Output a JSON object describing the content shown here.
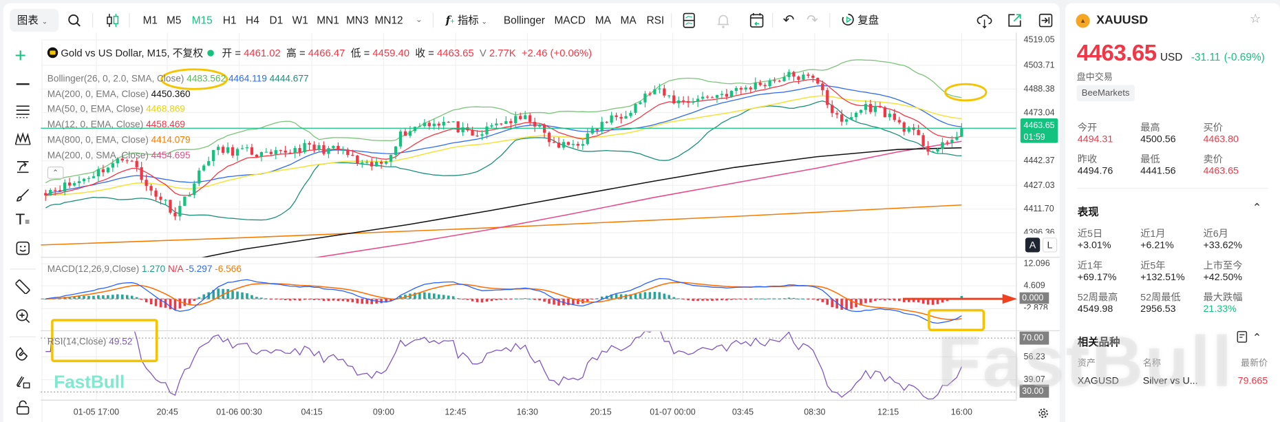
{
  "toolbar": {
    "chart_menu": "图表",
    "timeframes": [
      "M1",
      "M5",
      "M15",
      "H1",
      "H4",
      "D1",
      "W1",
      "MN1",
      "MN3",
      "MN12"
    ],
    "active_timeframe": "M15",
    "indicators_label": "指标",
    "quick_indicators": [
      "Bollinger",
      "MACD",
      "MA",
      "MA",
      "RSI"
    ],
    "replay_label": "复盘"
  },
  "legend": {
    "symbol_title": "Gold vs US Dollar, M15, 不复权",
    "open_label": "开 =",
    "open": "4461.02",
    "high_label": "高 =",
    "high": "4466.47",
    "low_label": "低 =",
    "low": "4459.40",
    "close_label": "收 =",
    "close": "4463.65",
    "volume_label": "V",
    "volume": "2.77K",
    "change": "+2.46 (+0.06%)"
  },
  "indicators": [
    {
      "name": "Bollinger(26, 0, 2.0, SMA, Close)",
      "values": [
        "4483.562",
        "4464.119",
        "4444.677"
      ]
    },
    {
      "name": "MA(200, 0, EMA, Close)",
      "values": [
        "4450.360"
      ]
    },
    {
      "name": "MA(50, 0, EMA, Close)",
      "values": [
        "4468.869"
      ]
    },
    {
      "name": "MA(12, 0, EMA, Close)",
      "values": [
        "4458.469"
      ]
    },
    {
      "name": "MA(800, 0, EMA, Close)",
      "values": [
        "4414.079"
      ]
    },
    {
      "name": "MA(200, 0, SMA, Close)",
      "values": [
        "4454.695"
      ]
    }
  ],
  "price_axis": [
    "4519.05",
    "4503.71",
    "4488.38",
    "4473.04",
    "4442.37",
    "4427.03",
    "4411.70",
    "4396.36"
  ],
  "current_price": {
    "price": "4463.65",
    "countdown": "01:59"
  },
  "scale_buttons": {
    "auto": "A",
    "log": "L"
  },
  "macd": {
    "name": "MACD(12,26,9,Close)",
    "hist": "1.270",
    "na": "N/A",
    "macd": "-5.297",
    "signal": "-6.566",
    "axis": [
      "12.096",
      "4.609",
      "0.000",
      "-2.878"
    ]
  },
  "rsi": {
    "name": "RSI(14,Close)",
    "value": "49.52",
    "axis": [
      "70.00",
      "56.23",
      "39.07",
      "30.00"
    ]
  },
  "time_axis": [
    "01-05 17:00",
    "20:45",
    "01-06 00:30",
    "04:15",
    "09:00",
    "12:45",
    "16:30",
    "20:15",
    "01-07 00:00",
    "03:45",
    "08:30",
    "12:15",
    "16:00"
  ],
  "watermark": "FastBull",
  "colors": {
    "up": "#13c27f",
    "down": "#f23645",
    "accent": "#13c27f",
    "annotation": "#f5c400"
  },
  "quote": {
    "symbol": "XAUUSD",
    "price": "4463.65",
    "currency": "USD",
    "change": "-31.11",
    "change_pct": "(-0.69%)",
    "session": "盘中交易",
    "broker": "BeeMarkets",
    "stats": [
      {
        "label": "今开",
        "value": "4494.31",
        "tone": "red"
      },
      {
        "label": "最高",
        "value": "4500.56",
        "tone": ""
      },
      {
        "label": "买价",
        "value": "4463.80",
        "tone": "red"
      },
      {
        "label": "昨收",
        "value": "4494.76",
        "tone": ""
      },
      {
        "label": "最低",
        "value": "4441.56",
        "tone": ""
      },
      {
        "label": "卖价",
        "value": "4463.65",
        "tone": "red"
      }
    ]
  },
  "performance": {
    "title": "表现",
    "items": [
      {
        "label": "近5日",
        "value": "+3.01%",
        "tone": ""
      },
      {
        "label": "近1月",
        "value": "+6.21%",
        "tone": ""
      },
      {
        "label": "近6月",
        "value": "+33.62%",
        "tone": ""
      },
      {
        "label": "近1年",
        "value": "+69.17%",
        "tone": ""
      },
      {
        "label": "近5年",
        "value": "+132.51%",
        "tone": ""
      },
      {
        "label": "上市至今",
        "value": "+42.50%",
        "tone": ""
      },
      {
        "label": "52周最高",
        "value": "4549.98",
        "tone": ""
      },
      {
        "label": "52周最低",
        "value": "2956.53",
        "tone": ""
      },
      {
        "label": "最大跌幅",
        "value": "21.33%",
        "tone": "grn"
      }
    ]
  },
  "related": {
    "title": "相关品种",
    "headers": [
      "资产",
      "名称",
      "最新价"
    ],
    "rows": [
      {
        "asset": "XAGUSD",
        "name": "Silver vs U...",
        "price": "79.665"
      }
    ]
  }
}
